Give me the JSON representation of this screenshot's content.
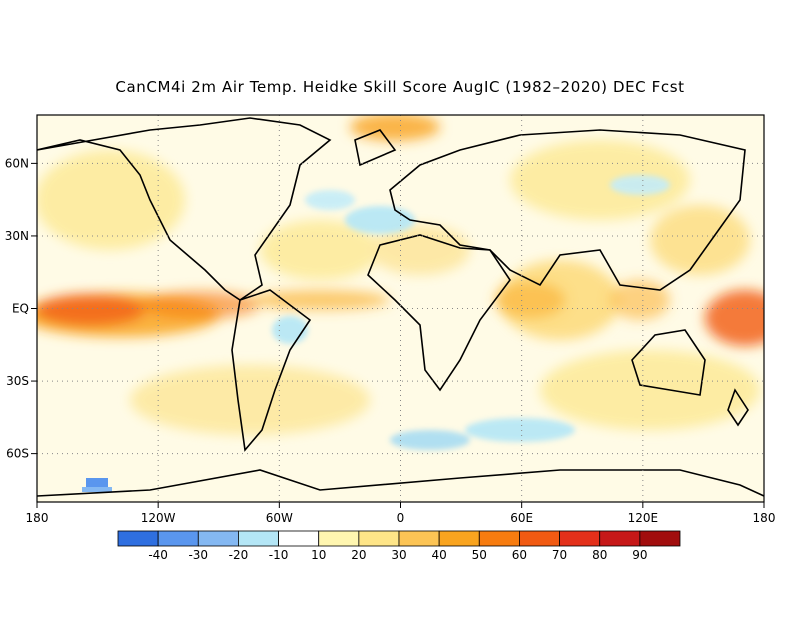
{
  "title": "CanCM4i 2m Air Temp. Heidke Skill Score AugIC (1982–2020) DEC Fcst",
  "map": {
    "lon_range": [
      -180,
      180
    ],
    "lat_range": [
      -80,
      80
    ],
    "lon_ticks": [
      {
        "value": -180,
        "label": "180"
      },
      {
        "value": -120,
        "label": "120W"
      },
      {
        "value": -60,
        "label": "60W"
      },
      {
        "value": 0,
        "label": "0"
      },
      {
        "value": 60,
        "label": "60E"
      },
      {
        "value": 120,
        "label": "120E"
      },
      {
        "value": 180,
        "label": "180"
      }
    ],
    "lat_ticks": [
      {
        "value": 60,
        "label": "60N"
      },
      {
        "value": 30,
        "label": "30N"
      },
      {
        "value": 0,
        "label": "EQ"
      },
      {
        "value": -30,
        "label": "30S"
      },
      {
        "value": -60,
        "label": "60S"
      }
    ],
    "grid": "dotted"
  },
  "colorbar": {
    "colors": [
      "#2f6fe0",
      "#5a96ee",
      "#84b8f2",
      "#b4e6f6",
      "#ffffff",
      "#fff6b0",
      "#fee588",
      "#fcc455",
      "#f9a41f",
      "#f77c0f",
      "#f15a12",
      "#e3301a",
      "#c61818",
      "#a10d0d"
    ],
    "labels": [
      "-40",
      "-30",
      "-20",
      "-10",
      "10",
      "20",
      "30",
      "40",
      "50",
      "60",
      "70",
      "80",
      "90"
    ]
  }
}
